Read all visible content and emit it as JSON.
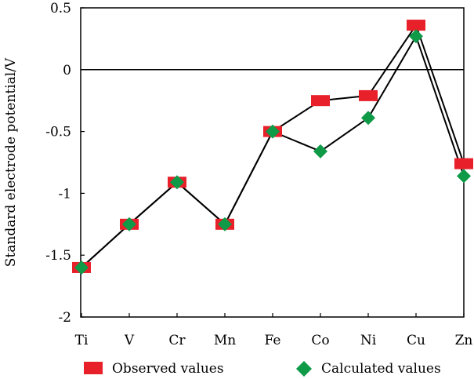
{
  "chart_data": {
    "type": "line",
    "title": "",
    "xlabel": "",
    "ylabel": "Standard electrode potential/V",
    "categories": [
      "Ti",
      "V",
      "Cr",
      "Mn",
      "Fe",
      "Co",
      "Ni",
      "Cu",
      "Zn"
    ],
    "ylim": [
      -2,
      0.5
    ],
    "yticks": [
      0.5,
      0,
      -0.5,
      -1,
      -1.5,
      -2
    ],
    "ytick_labels": [
      "0.5",
      "0",
      "-0.5",
      "-1",
      "-1.5",
      "-2"
    ],
    "zero_line": true,
    "grid": false,
    "legend_position": "bottom",
    "series": [
      {
        "name": "Observed values",
        "marker": "square",
        "color": "#e8202a",
        "values": [
          -1.6,
          -1.25,
          -0.91,
          -1.25,
          -0.5,
          -0.25,
          -0.21,
          0.36,
          -0.76
        ]
      },
      {
        "name": "Calculated values",
        "marker": "diamond",
        "color": "#0f9a48",
        "values": [
          -1.6,
          -1.25,
          -0.91,
          -1.25,
          -0.5,
          -0.66,
          -0.39,
          0.27,
          -0.86
        ]
      }
    ],
    "line_color": "#000000"
  }
}
